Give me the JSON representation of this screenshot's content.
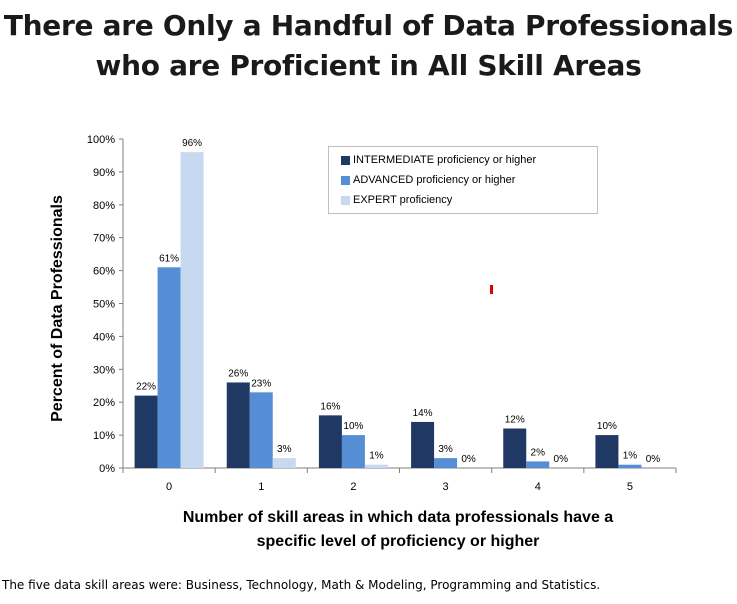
{
  "title": {
    "line1": "There are Only a Handful of Data Professionals",
    "line2": "who are Proficient in All Skill Areas"
  },
  "footnote": "The five data skill areas were: Business, Technology, Math & Modeling, Programming and Statistics.",
  "colors": {
    "intermediate": "#1f3864",
    "advanced": "#558ed5",
    "expert": "#c6d9f1",
    "axis": "#7f7f7f",
    "marker": "#e00000"
  },
  "chart_data": {
    "type": "bar",
    "xlabel": "Number of skill areas in which data professionals have a specific level of proficiency or higher",
    "xlabel_lines": [
      "Number of skill areas in which data professionals have a",
      "specific level of proficiency or higher"
    ],
    "ylabel": "Percent of Data Professionals",
    "ylim": [
      0,
      100
    ],
    "yticks": [
      "0%",
      "10%",
      "20%",
      "30%",
      "40%",
      "50%",
      "60%",
      "70%",
      "80%",
      "90%",
      "100%"
    ],
    "categories": [
      "0",
      "1",
      "2",
      "3",
      "4",
      "5"
    ],
    "legend_position": "top-right",
    "grid": false,
    "series": [
      {
        "name": "INTERMEDIATE  proficiency or higher",
        "values": [
          22,
          26,
          16,
          14,
          12,
          10
        ],
        "labels": [
          "22%",
          "26%",
          "16%",
          "14%",
          "12%",
          "10%"
        ]
      },
      {
        "name": "ADVANCED proficiency or higher",
        "values": [
          61,
          23,
          10,
          3,
          2,
          1
        ],
        "labels": [
          "61%",
          "23%",
          "10%",
          "3%",
          "2%",
          "1%"
        ]
      },
      {
        "name": "EXPERT proficiency",
        "values": [
          96,
          3,
          1,
          0,
          0,
          0
        ],
        "labels": [
          "96%",
          "3%",
          "1%",
          "0%",
          "0%",
          "0%"
        ]
      }
    ]
  }
}
